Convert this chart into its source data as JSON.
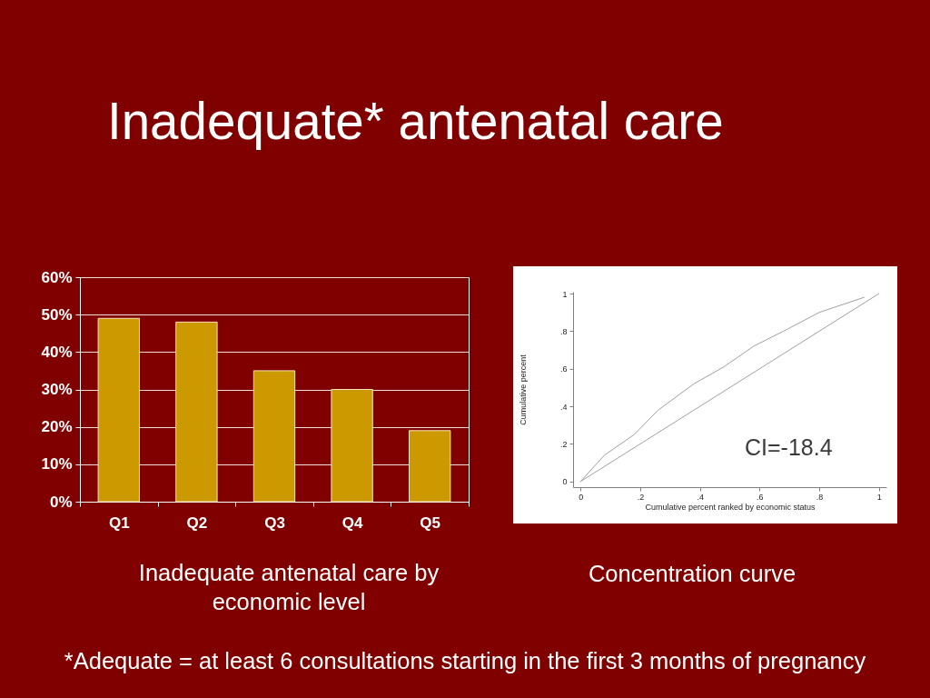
{
  "chart_data": [
    {
      "type": "bar",
      "title": "Inadequate* antenatal care",
      "categories": [
        "Q1",
        "Q2",
        "Q3",
        "Q4",
        "Q5"
      ],
      "values": [
        49,
        48,
        35,
        30,
        19
      ],
      "color": "#cc9900",
      "ylim": [
        0,
        60
      ],
      "yticks": [
        {
          "value": 0,
          "label": "0%"
        },
        {
          "value": 10,
          "label": "10%"
        },
        {
          "value": 20,
          "label": "20%"
        },
        {
          "value": 30,
          "label": "30%"
        },
        {
          "value": 40,
          "label": "40%"
        },
        {
          "value": 50,
          "label": "50%"
        },
        {
          "value": 60,
          "label": "60%"
        }
      ],
      "grid": "y",
      "annotations": [
        "Inadequate antenatal care by economic level",
        "*Adequate = at least 6 consultations starting in the first 3 months of pregnancy"
      ]
    },
    {
      "type": "line",
      "xlabel": "Cumulative percent ranked by economic status",
      "ylabel": "Cumulative percent",
      "xlim": [
        -0.025,
        1.025
      ],
      "ylim": [
        -0.03,
        1.01
      ],
      "xticks": [
        0,
        {
          "value": 0.2,
          "label": ".2"
        },
        {
          "value": 0.4,
          "label": ".4"
        },
        {
          "value": 0.6,
          "label": ".6"
        },
        {
          "value": 0.8,
          "label": ".8"
        },
        1
      ],
      "yticks": [
        0,
        {
          "value": 0.2,
          "label": ".2"
        },
        {
          "value": 0.4,
          "label": ".4"
        },
        {
          "value": 0.6,
          "label": ".6"
        },
        {
          "value": 0.8,
          "label": ".8"
        },
        1
      ],
      "series": [
        {
          "color": "#a0a0a0",
          "x": [
            0,
            0.08,
            0.18,
            0.26,
            0.38,
            0.48,
            0.58,
            0.68,
            0.8,
            0.95
          ],
          "values": [
            0,
            0.14,
            0.25,
            0.38,
            0.52,
            0.61,
            0.72,
            0.8,
            0.9,
            0.98
          ]
        },
        {
          "color": "#a0a0a0",
          "x": [
            0,
            1
          ],
          "values": [
            0,
            1
          ]
        }
      ],
      "annotations": [
        "CI=-18.4",
        "Concentration curve"
      ]
    }
  ]
}
